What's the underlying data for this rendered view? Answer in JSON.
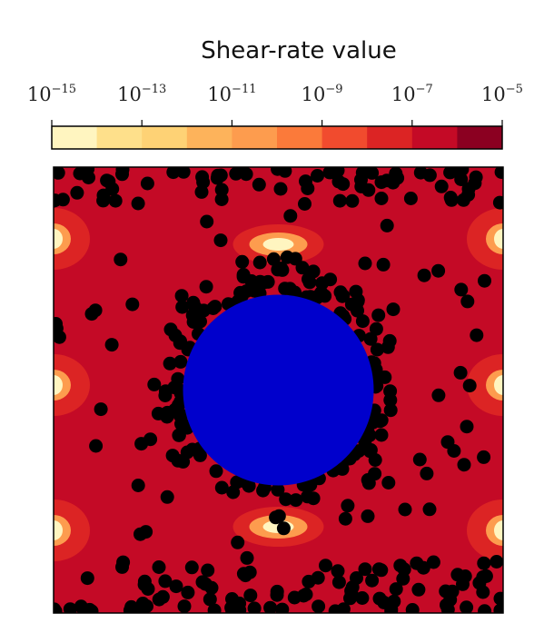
{
  "chart_data": {
    "type": "heatmap",
    "title": "",
    "colorbar": {
      "label": "Shear-rate value",
      "scale": "log",
      "range": [
        "1e-15",
        "1e-5"
      ],
      "ticks": [
        {
          "base": "10",
          "exp": "−15"
        },
        {
          "base": "10",
          "exp": "−13"
        },
        {
          "base": "10",
          "exp": "−11"
        },
        {
          "base": "10",
          "exp": "−9"
        },
        {
          "base": "10",
          "exp": "−7"
        },
        {
          "base": "10",
          "exp": "−5"
        }
      ],
      "levels": 10,
      "colors": [
        "#fff5c0",
        "#fee08b",
        "#fed275",
        "#fdb35b",
        "#fd9c4e",
        "#fb7a3a",
        "#f14b2e",
        "#dc2424",
        "#c40a26",
        "#8b0021"
      ]
    },
    "field": {
      "background_color": "#c40a26",
      "mid_color": "#dc2424",
      "high_color": "#fd9c4e",
      "peak_color": "#fff5c0",
      "domain": {
        "x": [
          0,
          1
        ],
        "y": [
          0,
          1
        ]
      }
    },
    "obstacle": {
      "shape": "circle",
      "color": "#0000cc",
      "center": [
        0.5,
        0.5
      ],
      "radius": 0.21
    },
    "particles": {
      "color": "#000000"
    },
    "grid": false,
    "axes_ticks": false
  }
}
